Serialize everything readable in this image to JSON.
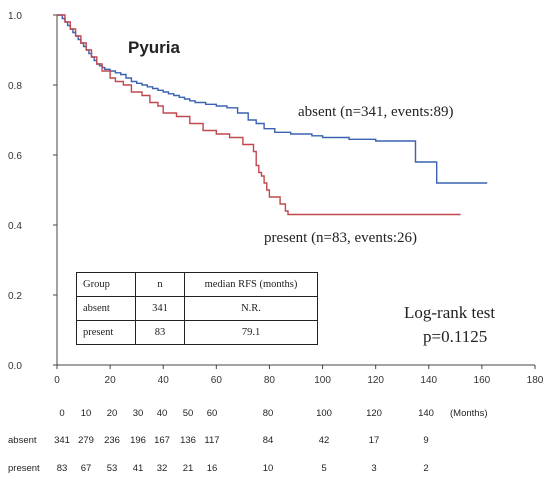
{
  "chart_data": {
    "type": "line",
    "title": "Pyuria",
    "xlim": [
      0,
      180
    ],
    "ylim": [
      0.0,
      1.0
    ],
    "x_ticks": [
      0,
      20,
      40,
      60,
      80,
      100,
      120,
      140,
      160,
      180
    ],
    "y_ticks": [
      "0.0",
      "0.2",
      "0.4",
      "0.6",
      "0.8",
      "1.0"
    ],
    "grid": false,
    "series": [
      {
        "name": "absent (n=341, events:89)",
        "color": "#3a62b0",
        "x": [
          0,
          2,
          3,
          4,
          5,
          6,
          7,
          8,
          9,
          10,
          11,
          12,
          13,
          14,
          15,
          16,
          17,
          18,
          20,
          22,
          24,
          26,
          28,
          30,
          32,
          34,
          36,
          38,
          40,
          42,
          44,
          46,
          48,
          50,
          52,
          56,
          60,
          64,
          68,
          72,
          75,
          78,
          82,
          88,
          96,
          100,
          110,
          120,
          130,
          135,
          142,
          143,
          162
        ],
        "y": [
          1.0,
          0.99,
          0.98,
          0.97,
          0.96,
          0.95,
          0.94,
          0.93,
          0.92,
          0.91,
          0.9,
          0.89,
          0.88,
          0.87,
          0.86,
          0.855,
          0.85,
          0.845,
          0.84,
          0.835,
          0.83,
          0.82,
          0.81,
          0.805,
          0.8,
          0.795,
          0.79,
          0.785,
          0.78,
          0.775,
          0.77,
          0.765,
          0.76,
          0.755,
          0.75,
          0.745,
          0.74,
          0.735,
          0.72,
          0.7,
          0.69,
          0.675,
          0.665,
          0.66,
          0.655,
          0.65,
          0.645,
          0.64,
          0.64,
          0.58,
          0.58,
          0.52,
          0.52
        ]
      },
      {
        "name": "present (n=83, events:26)",
        "color": "#c0484e",
        "x": [
          0,
          3,
          5,
          7,
          9,
          11,
          13,
          15,
          17,
          20,
          22,
          25,
          28,
          32,
          35,
          38,
          40,
          45,
          50,
          55,
          60,
          65,
          70,
          74,
          75,
          76,
          77,
          78,
          79,
          80,
          84,
          86,
          87,
          90,
          100,
          152
        ],
        "y": [
          1.0,
          0.98,
          0.96,
          0.94,
          0.92,
          0.9,
          0.88,
          0.86,
          0.84,
          0.82,
          0.81,
          0.8,
          0.78,
          0.77,
          0.75,
          0.74,
          0.72,
          0.71,
          0.69,
          0.67,
          0.66,
          0.65,
          0.63,
          0.61,
          0.57,
          0.55,
          0.54,
          0.52,
          0.5,
          0.48,
          0.46,
          0.44,
          0.43,
          0.43,
          0.43,
          0.43
        ]
      }
    ],
    "annotations": {
      "absent_label": "absent (n=341, events:89)",
      "present_label": "present (n=83, events:26)",
      "test_name": "Log-rank test",
      "p_value": "p=0.1125"
    },
    "summary_table": {
      "headers": [
        "Group",
        "n",
        "median RFS (months)"
      ],
      "rows": [
        [
          "absent",
          "341",
          "N.R."
        ],
        [
          "present",
          "83",
          "79.1"
        ]
      ]
    },
    "risk_table": {
      "times": [
        0,
        10,
        20,
        30,
        40,
        50,
        60,
        80,
        100,
        120,
        140
      ],
      "unit": "(Months)",
      "groups": [
        {
          "name": "absent",
          "counts": [
            "341",
            "279",
            "236",
            "196",
            "167",
            "136",
            "117",
            "84",
            "42",
            "17",
            "9"
          ]
        },
        {
          "name": "present",
          "counts": [
            "83",
            "67",
            "53",
            "41",
            "32",
            "21",
            "16",
            "10",
            "5",
            "3",
            "2"
          ]
        }
      ]
    }
  }
}
